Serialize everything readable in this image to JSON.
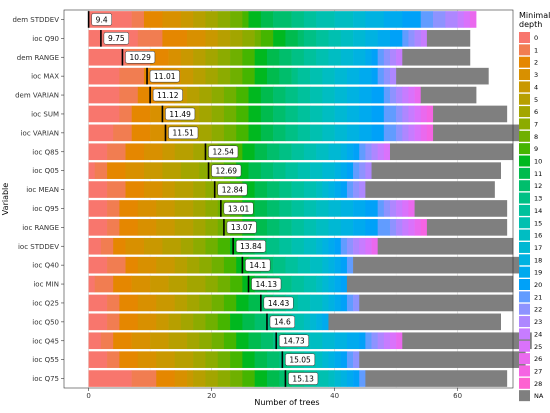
{
  "chart_data": {
    "type": "bar",
    "orientation": "horizontal",
    "stacked": true,
    "ylabel": "Variable",
    "xlabel": "Number of trees",
    "xlim": [
      -4,
      69
    ],
    "xticks": [
      0,
      20,
      40,
      60
    ],
    "grid": true,
    "legend": {
      "title": "Minimal\ndepth",
      "placement": "right",
      "entries": [
        "0",
        "1",
        "2",
        "3",
        "4",
        "5",
        "6",
        "7",
        "8",
        "9",
        "10",
        "11",
        "12",
        "13",
        "14",
        "15",
        "16",
        "17",
        "18",
        "19",
        "20",
        "21",
        "22",
        "23",
        "24",
        "25",
        "26",
        "27",
        "28",
        "NA"
      ],
      "colors": [
        "#F8766D",
        "#F17D51",
        "#E58700",
        "#D89000",
        "#C99800",
        "#B79F00",
        "#A3A500",
        "#8CAB00",
        "#6FB000",
        "#45B500",
        "#00B81F",
        "#00BB4E",
        "#00BE6C",
        "#00C085",
        "#00C19C",
        "#00C0B0",
        "#00BDC2",
        "#00B8D3",
        "#00B2E1",
        "#00AAEE",
        "#00A1F8",
        "#619CFF",
        "#8E93FF",
        "#AE87FF",
        "#C77CFF",
        "#DA72FB",
        "#EA69EE",
        "#F564E3",
        "#FD61D1",
        "#7F7F7F"
      ]
    },
    "categories": [
      "dem_STDDEV",
      "ioc_Q90",
      "dem_RANGE",
      "ioc_MAX",
      "dem_VARIAN",
      "ioc_SUM",
      "ioc_VARIAN",
      "ioc_Q85",
      "ioc_Q05",
      "ioc_MEAN",
      "ioc_Q95",
      "ioc_RANGE",
      "ioc_STDDEV",
      "ioc_Q40",
      "ioc_MIN",
      "ioc_Q25",
      "ioc_Q50",
      "ioc_Q45",
      "ioc_Q55",
      "ioc_Q75"
    ],
    "mean_min_depth": [
      9.4,
      9.75,
      10.29,
      11.01,
      11.12,
      11.49,
      11.51,
      12.54,
      12.69,
      12.84,
      13.01,
      13.07,
      13.84,
      14.1,
      14.13,
      14.43,
      14.6,
      14.73,
      15.05,
      15.13
    ],
    "mean_label_position": [
      0,
      2,
      5.5,
      9.5,
      10,
      12,
      12.5,
      19,
      19.5,
      20.5,
      21.5,
      22,
      23.5,
      25,
      26,
      28,
      29,
      30.5,
      31.5,
      32
    ],
    "counts": [
      [
        7,
        2,
        3,
        3,
        2,
        2,
        2,
        2,
        2,
        1,
        2,
        2,
        3,
        2,
        2,
        3,
        3,
        2,
        3,
        3,
        3,
        2,
        2,
        2,
        1,
        1,
        1,
        0,
        0,
        0
      ],
      [
        8,
        4,
        4,
        3,
        2,
        2,
        2,
        2,
        1,
        2,
        2,
        2,
        1,
        2,
        2,
        2,
        2,
        2,
        2,
        2,
        2,
        1,
        1,
        1,
        1,
        0,
        0,
        0,
        0,
        7
      ],
      [
        6,
        4,
        3,
        2,
        2,
        2,
        2,
        2,
        2,
        2,
        2,
        2,
        2,
        2,
        2,
        2,
        2,
        2,
        2,
        1,
        1,
        1,
        1,
        1,
        1,
        0,
        0,
        0,
        0,
        11
      ],
      [
        5,
        4,
        3,
        3,
        2,
        2,
        2,
        2,
        2,
        2,
        2,
        2,
        2,
        1,
        2,
        2,
        2,
        2,
        2,
        2,
        1,
        1,
        1,
        1,
        0,
        0,
        0,
        0,
        0,
        15
      ],
      [
        5,
        3,
        3,
        3,
        2,
        2,
        2,
        2,
        2,
        2,
        2,
        2,
        2,
        2,
        2,
        2,
        2,
        2,
        2,
        2,
        2,
        1,
        1,
        1,
        1,
        1,
        1,
        0,
        0,
        9
      ],
      [
        5,
        2,
        3,
        3,
        2,
        3,
        2,
        2,
        2,
        2,
        2,
        2,
        2,
        2,
        2,
        2,
        2,
        2,
        2,
        2,
        2,
        2,
        1,
        1,
        1,
        1,
        1,
        1,
        0,
        12
      ],
      [
        4,
        3,
        3,
        3,
        2,
        3,
        2,
        2,
        2,
        2,
        2,
        2,
        2,
        2,
        2,
        2,
        2,
        2,
        2,
        2,
        2,
        2,
        1,
        1,
        1,
        1,
        1,
        1,
        0,
        14
      ],
      [
        3,
        3,
        3,
        3,
        2,
        3,
        2,
        2,
        2,
        2,
        2,
        2,
        2,
        2,
        2,
        2,
        2,
        2,
        1,
        1,
        1,
        1,
        1,
        1,
        1,
        1,
        0,
        0,
        0,
        20
      ],
      [
        1,
        2,
        3,
        3,
        3,
        3,
        3,
        2,
        2,
        2,
        2,
        2,
        2,
        2,
        2,
        2,
        2,
        2,
        1,
        1,
        1,
        1,
        1,
        1,
        0,
        0,
        0,
        0,
        0,
        21
      ],
      [
        3,
        3,
        3,
        3,
        2,
        3,
        2,
        2,
        2,
        2,
        2,
        2,
        2,
        2,
        2,
        2,
        1,
        1,
        1,
        1,
        1,
        1,
        1,
        1,
        0,
        0,
        0,
        0,
        0,
        21
      ],
      [
        3,
        2,
        3,
        3,
        3,
        3,
        2,
        2,
        2,
        2,
        2,
        2,
        2,
        2,
        2,
        2,
        2,
        2,
        2,
        2,
        2,
        1,
        1,
        1,
        1,
        1,
        1,
        0,
        0,
        15
      ],
      [
        3,
        2,
        3,
        3,
        3,
        3,
        2,
        2,
        2,
        2,
        2,
        2,
        2,
        2,
        2,
        2,
        2,
        2,
        2,
        2,
        2,
        2,
        1,
        1,
        1,
        1,
        1,
        1,
        0,
        13
      ],
      [
        2,
        2,
        2,
        3,
        3,
        3,
        2,
        2,
        2,
        2,
        2,
        2,
        2,
        2,
        2,
        2,
        2,
        1,
        1,
        1,
        1,
        1,
        1,
        1,
        1,
        1,
        1,
        0,
        0,
        22
      ],
      [
        3,
        3,
        2,
        3,
        3,
        2,
        2,
        2,
        2,
        2,
        2,
        2,
        2,
        2,
        2,
        2,
        2,
        1,
        1,
        1,
        1,
        1,
        0,
        0,
        0,
        0,
        0,
        0,
        0,
        27
      ],
      [
        1,
        3,
        3,
        3,
        3,
        3,
        3,
        2,
        2,
        2,
        2,
        2,
        2,
        2,
        2,
        2,
        1,
        1,
        1,
        1,
        1,
        0,
        0,
        0,
        0,
        0,
        0,
        0,
        0,
        27
      ],
      [
        3,
        2,
        3,
        3,
        3,
        2,
        2,
        2,
        2,
        2,
        2,
        2,
        2,
        2,
        2,
        2,
        2,
        1,
        1,
        1,
        1,
        1,
        1,
        0,
        0,
        0,
        0,
        0,
        0,
        25
      ],
      [
        3,
        2,
        3,
        3,
        2,
        2,
        2,
        2,
        2,
        2,
        2,
        2,
        2,
        2,
        2,
        2,
        1,
        1,
        1,
        1,
        0,
        0,
        0,
        0,
        0,
        0,
        0,
        0,
        0,
        28
      ],
      [
        2,
        2,
        3,
        3,
        3,
        3,
        2,
        2,
        2,
        2,
        2,
        2,
        2,
        2,
        2,
        2,
        2,
        2,
        2,
        2,
        1,
        1,
        1,
        1,
        1,
        1,
        1,
        0,
        0,
        21
      ],
      [
        3,
        2,
        3,
        3,
        3,
        3,
        2,
        2,
        2,
        2,
        2,
        2,
        2,
        2,
        2,
        2,
        1,
        1,
        1,
        1,
        1,
        1,
        1,
        0,
        0,
        0,
        0,
        0,
        0,
        27
      ],
      [
        7,
        4,
        3,
        2,
        1,
        2,
        2,
        2,
        2,
        2,
        2,
        2,
        2,
        2,
        2,
        2,
        1,
        1,
        1,
        1,
        1,
        1,
        0,
        0,
        0,
        0,
        0,
        0,
        0,
        23
      ]
    ],
    "tick_labels": {
      "y": [
        "dem_STDDEV",
        "ioc_Q90",
        "dem_RANGE",
        "ioc_MAX",
        "dem_VARIAN",
        "ioc_SUM",
        "ioc_VARIAN",
        "ioc_Q85",
        "ioc_Q05",
        "ioc_MEAN",
        "ioc_Q95",
        "ioc_RANGE",
        "ioc_STDDEV",
        "ioc_Q40",
        "ioc_MIN",
        "ioc_Q25",
        "ioc_Q50",
        "ioc_Q45",
        "ioc_Q55",
        "ioc_Q75"
      ],
      "x": [
        "0",
        "20",
        "40",
        "60"
      ]
    }
  }
}
